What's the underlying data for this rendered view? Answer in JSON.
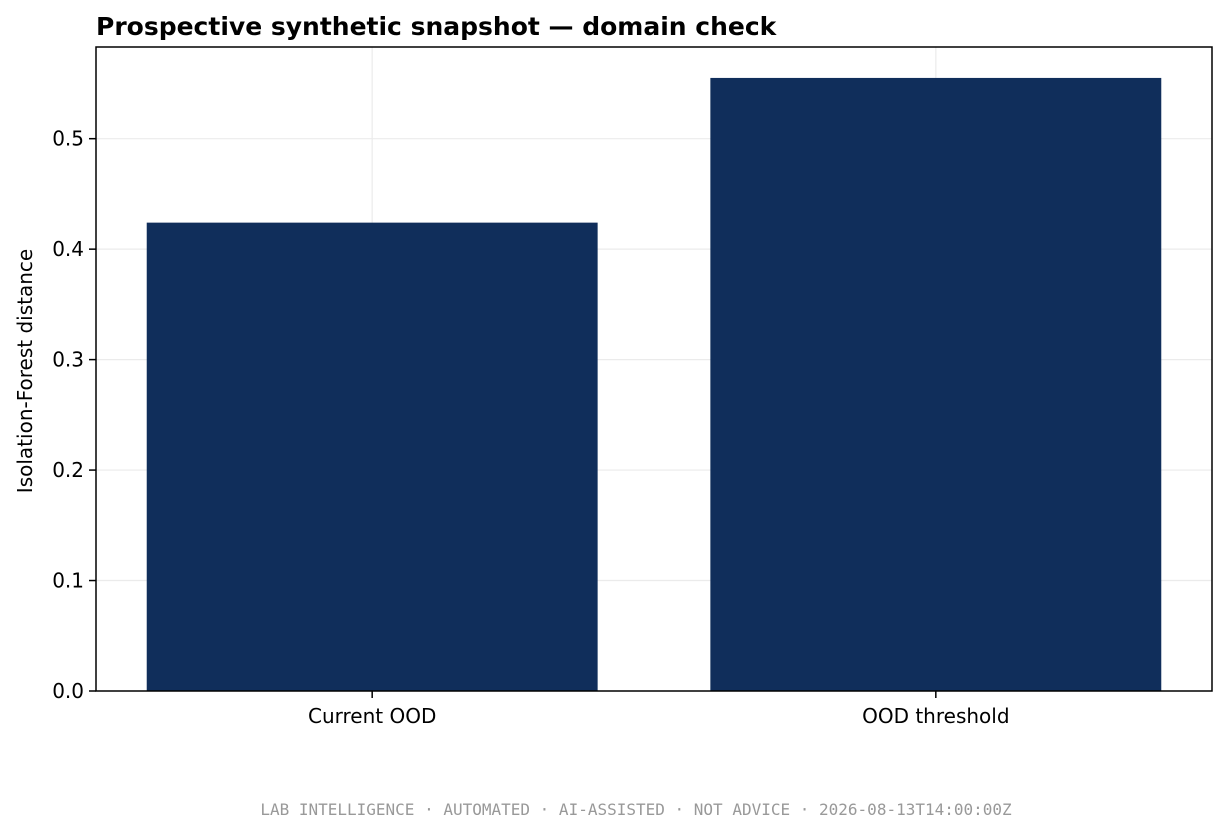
{
  "chart_data": {
    "type": "bar",
    "title": "Prospective synthetic snapshot — domain check",
    "xlabel": "",
    "ylabel": "Isolation-Forest distance",
    "categories": [
      "Current OOD",
      "OOD threshold"
    ],
    "values": [
      0.424,
      0.555
    ],
    "ylim": [
      0,
      0.583
    ],
    "yticks": [
      0.0,
      0.1,
      0.2,
      0.3,
      0.4,
      0.5
    ],
    "ytick_labels": [
      "0.0",
      "0.1",
      "0.2",
      "0.3",
      "0.4",
      "0.5"
    ],
    "grid": true,
    "legend": "none",
    "bar_color": "#102e5b"
  },
  "footer": {
    "text": "LAB INTELLIGENCE · AUTOMATED · AI-ASSISTED · NOT ADVICE · 2026-08-13T14:00:00Z"
  }
}
